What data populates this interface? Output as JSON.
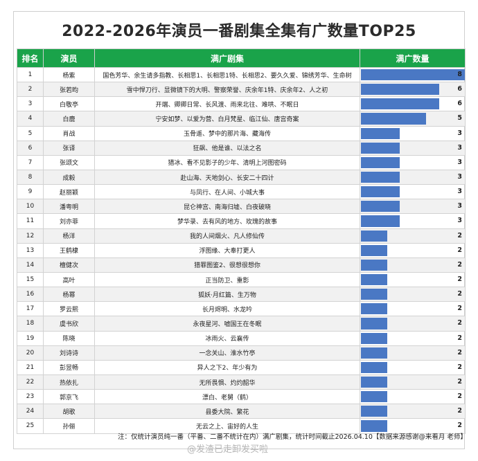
{
  "title": "2022-2026年演员一番剧集全集有广数量TOP25",
  "columns": {
    "rank": "排名",
    "actor": "演员",
    "dramas": "满广剧集",
    "count": "满广数量"
  },
  "note": "注：仅统计演员纯一番（平番、二番不统计在内）满广剧集，统计时间截止2026.04.10【数据来源感谢@来看月 老师】",
  "watermark": "@发渣已走卸发买啦",
  "colors": {
    "header": "#1aa34a",
    "bar": "#4a78c4"
  },
  "chart_data": {
    "type": "bar",
    "title": "2022-2026年演员一番剧集全集有广数量TOP25",
    "xlim": [
      0,
      8
    ],
    "rows": [
      {
        "rank": "1",
        "actor": "杨紫",
        "dramas": "国色芳华、余生请多指教、长相思1、长相思1特、长相思2、要久久爱、锦绣芳华、生命树",
        "value": 8
      },
      {
        "rank": "2",
        "actor": "张若昀",
        "dramas": "雪中悍刀行、显微镜下的大明、警察荣誉、庆余年1特、庆余年2、人之初",
        "value": 6
      },
      {
        "rank": "3",
        "actor": "白敬亭",
        "dramas": "开端、卿卿日常、长风渡、雨来北往、难哄、不眠日",
        "value": 6
      },
      {
        "rank": "4",
        "actor": "白鹿",
        "dramas": "宁安如梦、以爱为营、白月梵星、临江仙、唐宫奇案",
        "value": 5
      },
      {
        "rank": "5",
        "actor": "肖战",
        "dramas": "玉骨遥、梦中的那片海、藏海传",
        "value": 3
      },
      {
        "rank": "6",
        "actor": "张译",
        "dramas": "狂飙、他是谁、以法之名",
        "value": 3
      },
      {
        "rank": "7",
        "actor": "张颂文",
        "dramas": "猎冰、看不见影子的少年、清明上河图密码",
        "value": 3
      },
      {
        "rank": "8",
        "actor": "成毅",
        "dramas": "赴山海、天地剑心、长安二十四计",
        "value": 3
      },
      {
        "rank": "9",
        "actor": "赵丽颖",
        "dramas": "与凤行、在人间、小城大事",
        "value": 3
      },
      {
        "rank": "10",
        "actor": "潘粤明",
        "dramas": "昆仑神宫、南海归墟、白夜破晓",
        "value": 3
      },
      {
        "rank": "11",
        "actor": "刘亦菲",
        "dramas": "梦华录、去有风的地方、玫瑰的故事",
        "value": 3
      },
      {
        "rank": "12",
        "actor": "杨洋",
        "dramas": "我的人间烟火、凡人修仙传",
        "value": 2
      },
      {
        "rank": "13",
        "actor": "王鹤棣",
        "dramas": "浮图缘、大奉打更人",
        "value": 2
      },
      {
        "rank": "14",
        "actor": "檀健次",
        "dramas": "猎罪图鉴2、很想很想你",
        "value": 2
      },
      {
        "rank": "15",
        "actor": "高叶",
        "dramas": "正当防卫、重影",
        "value": 2
      },
      {
        "rank": "16",
        "actor": "杨幂",
        "dramas": "狐妖·月红篇、生万物",
        "value": 2
      },
      {
        "rank": "17",
        "actor": "罗云熙",
        "dramas": "长月烬明、水龙吟",
        "value": 2
      },
      {
        "rank": "18",
        "actor": "虞书欣",
        "dramas": "永夜星河、嘘国王在冬眠",
        "value": 2
      },
      {
        "rank": "19",
        "actor": "陈晓",
        "dramas": "冰雨火、云襄传",
        "value": 2
      },
      {
        "rank": "20",
        "actor": "刘诗诗",
        "dramas": "一念关山、淮水竹亭",
        "value": 2
      },
      {
        "rank": "21",
        "actor": "彭昱畅",
        "dramas": "异人之下2、年少有为",
        "value": 2
      },
      {
        "rank": "22",
        "actor": "热依扎",
        "dramas": "无所畏惧、灼灼韶华",
        "value": 2
      },
      {
        "rank": "23",
        "actor": "郭京飞",
        "dramas": "漂白、老舅（鹤）",
        "value": 2
      },
      {
        "rank": "24",
        "actor": "胡歌",
        "dramas": "县委大院、繁花",
        "value": 2
      },
      {
        "rank": "25",
        "actor": "孙俪",
        "dramas": "无云之上、宙好的人生",
        "value": 2
      }
    ]
  }
}
